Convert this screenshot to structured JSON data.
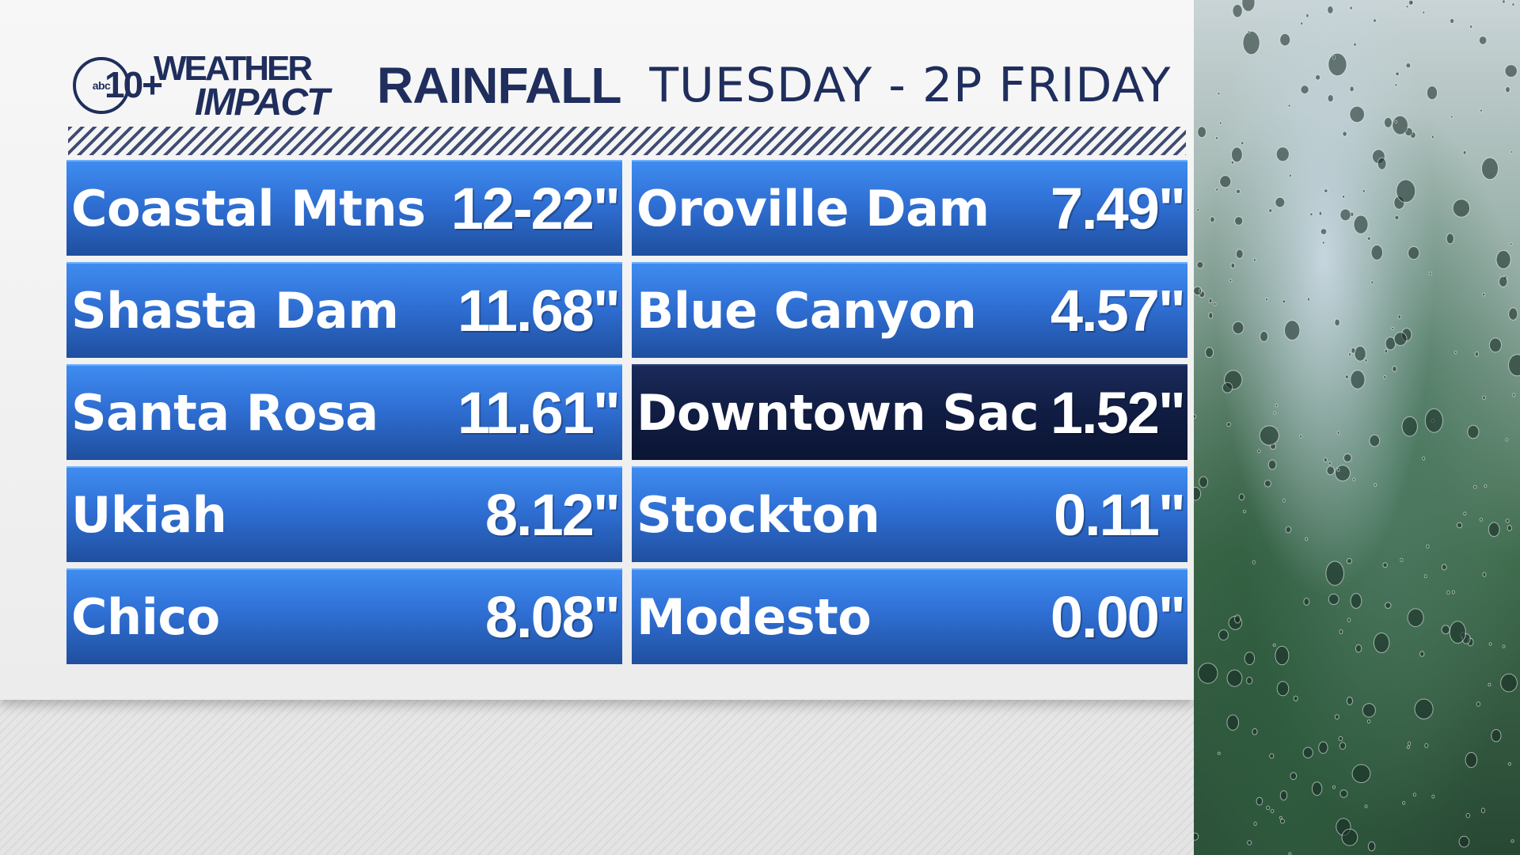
{
  "logo": {
    "abc": "abc",
    "number": "10+",
    "line1": "WEATHER",
    "line2": "IMPACT"
  },
  "header": {
    "title": "RAINFALL",
    "subtitle": "TUESDAY - 2P FRIDAY"
  },
  "left_column": [
    {
      "name": "Coastal Mtns",
      "value": "12-22\""
    },
    {
      "name": "Shasta Dam",
      "value": "11.68\""
    },
    {
      "name": "Santa Rosa",
      "value": "11.61\""
    },
    {
      "name": "Ukiah",
      "value": "8.12\""
    },
    {
      "name": "Chico",
      "value": "8.08\""
    }
  ],
  "right_column": [
    {
      "name": "Oroville Dam",
      "value": "7.49\""
    },
    {
      "name": "Blue Canyon",
      "value": "4.57\""
    },
    {
      "name": "Downtown Sac",
      "value": "1.52\""
    },
    {
      "name": "Stockton",
      "value": "0.11\""
    },
    {
      "name": "Modesto",
      "value": "0.00\""
    }
  ],
  "colors": {
    "navy": "#1f2e5c",
    "bar_blue": "#2f6fd4",
    "highlight": "#101c42"
  },
  "photo": {
    "subject": "raindrops-on-window-photo"
  }
}
